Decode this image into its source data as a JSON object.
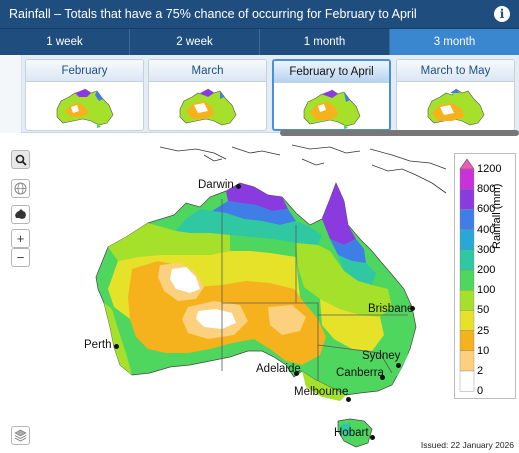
{
  "header": {
    "title": "Rainfall – Totals that have a 75% chance of occurring for February to April",
    "info_icon": "info-icon"
  },
  "period_tabs": [
    {
      "label": "1 week",
      "active": false
    },
    {
      "label": "2 week",
      "active": false
    },
    {
      "label": "1 month",
      "active": false
    },
    {
      "label": "3 month",
      "active": true
    }
  ],
  "thumbnails": [
    {
      "label": "February",
      "active": false
    },
    {
      "label": "March",
      "active": false
    },
    {
      "label": "February to April",
      "active": true
    },
    {
      "label": "March to May",
      "active": false
    }
  ],
  "map_controls": [
    "search-icon",
    "globe-icon",
    "australia-icon",
    "zoom-in-button",
    "zoom-out-button",
    "layers-icon"
  ],
  "zoom": {
    "in": "+",
    "out": "−"
  },
  "legend": {
    "unit": "Rainfall (mm)",
    "levels": [
      "1200",
      "800",
      "600",
      "400",
      "300",
      "200",
      "100",
      "50",
      "25",
      "10",
      "2",
      "0"
    ],
    "colors": [
      "#f05ab4",
      "#c732d9",
      "#8a3be0",
      "#3f7ee6",
      "#28a8d6",
      "#2fc8a2",
      "#4fd65e",
      "#a5e02b",
      "#e6e22a",
      "#f6b21c",
      "#fbd07e",
      "#ffffff"
    ]
  },
  "cities": [
    "Darwin",
    "Perth",
    "Brisbane",
    "Adelaide",
    "Sydney",
    "Canberra",
    "Melbourne",
    "Hobart"
  ],
  "issued": "Issued: 22 January 2026"
}
